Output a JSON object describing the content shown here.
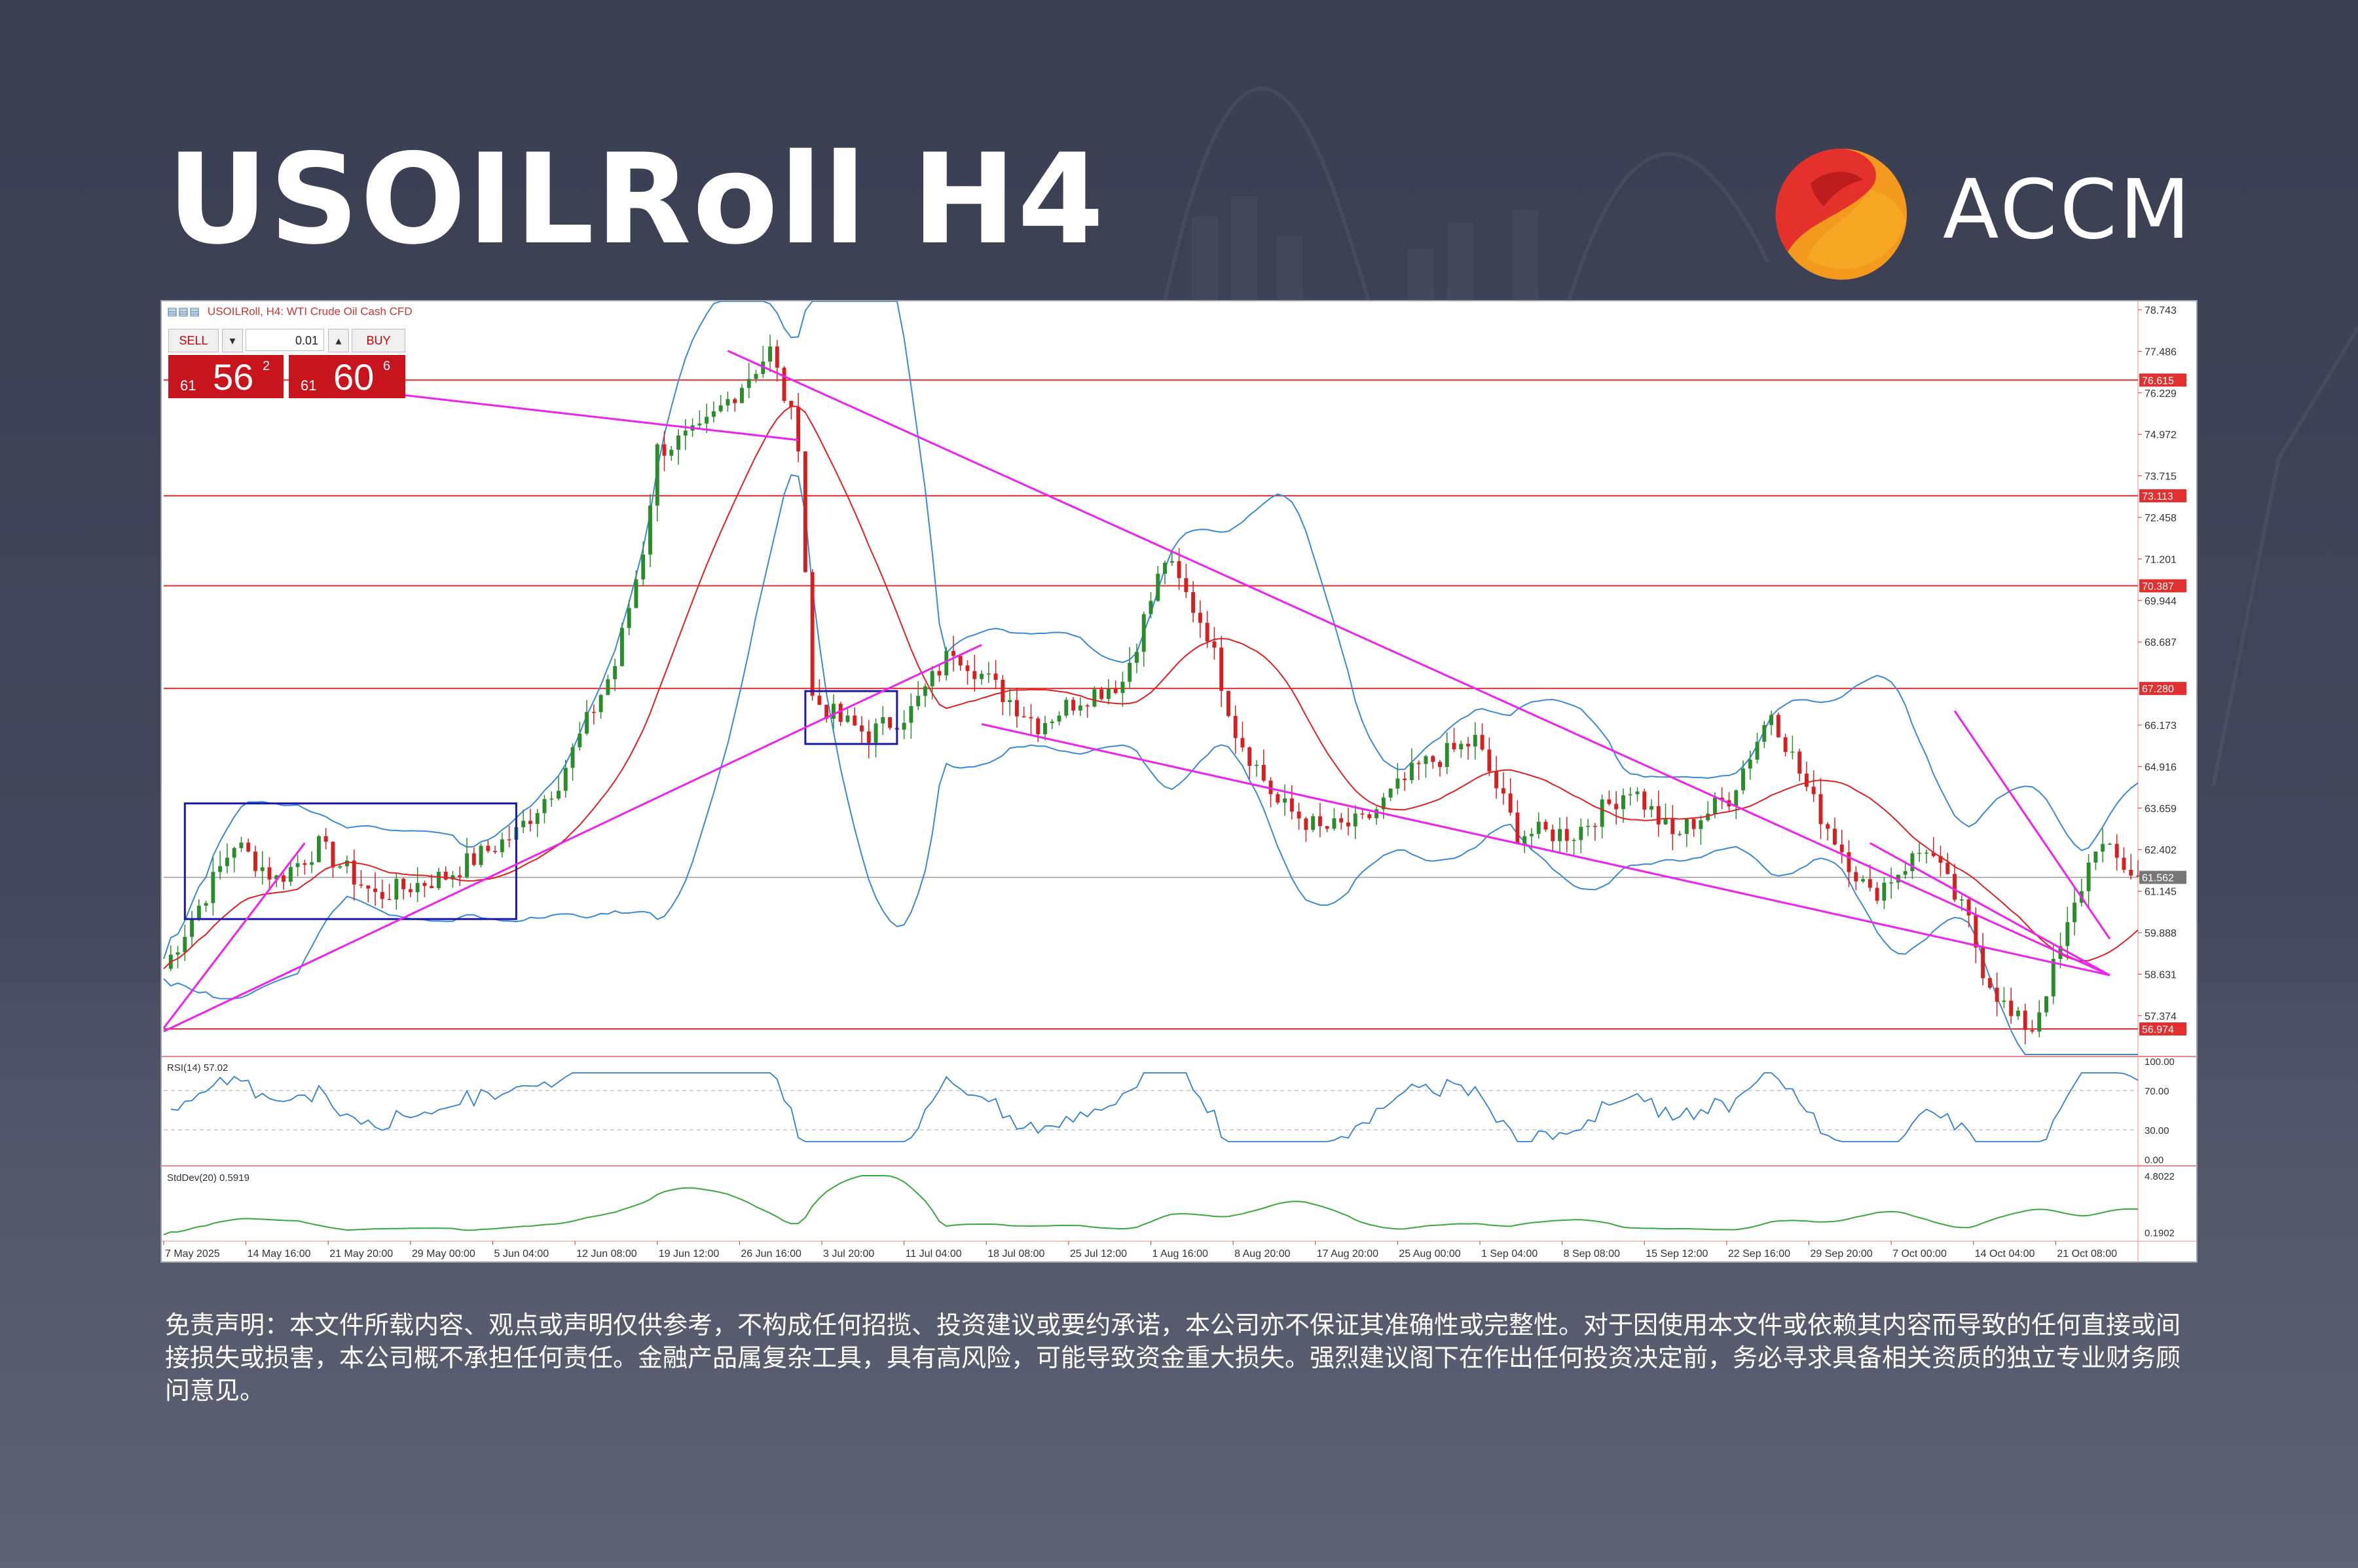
{
  "header": {
    "title": "USOILRoll H4",
    "brand": "ACCM"
  },
  "colors": {
    "background": "#3f4357",
    "title": "#ffffff",
    "brand_red": "#e5312b",
    "brand_orange": "#f39a1e",
    "candle_up": "#2a8c2a",
    "candle_down": "#d42020",
    "level_line": "#e23030",
    "trend_line": "#ee22ee",
    "box": "#1a1aa8",
    "bollinger": "#3a88d8",
    "ma": "#e02020",
    "rsi": "#2f7fd8",
    "stddev": "#3aa83a"
  },
  "window": {
    "symbol_line": "USOILRoll, H4:  WTI Crude Oil Cash CFD",
    "icons": "▤▤▤"
  },
  "trade_panel": {
    "sell_label": "SELL",
    "buy_label": "BUY",
    "lot": "0.01",
    "sell_price_small": "61",
    "sell_price_big": "56",
    "sell_price_sup": "2",
    "buy_price_small": "61",
    "buy_price_big": "60",
    "buy_price_sup": "6"
  },
  "indicators": {
    "rsi_label": "RSI(14) 57.02",
    "std_label": "StdDev(20) 0.5919"
  },
  "chart_data": {
    "type": "candlestick",
    "title": "USOILRoll, H4: WTI Crude Oil Cash CFD",
    "ylim": [
      56.2,
      79.0
    ],
    "price_axis_ticks": [
      "78.743",
      "77.486",
      "76.229",
      "74.972",
      "73.715",
      "72.458",
      "71.201",
      "69.944",
      "68.687",
      "66.173",
      "64.916",
      "63.659",
      "62.402",
      "61.145",
      "59.888",
      "58.631",
      "57.374"
    ],
    "price_axis_values": [
      78.743,
      77.486,
      76.229,
      74.972,
      73.715,
      72.458,
      71.201,
      69.944,
      68.687,
      66.173,
      64.916,
      63.659,
      62.402,
      61.145,
      59.888,
      58.631,
      57.374
    ],
    "horizontal_levels": [
      {
        "value": 76.615,
        "label": "76.615"
      },
      {
        "value": 73.113,
        "label": "73.113"
      },
      {
        "value": 70.387,
        "label": "70.387"
      },
      {
        "value": 67.28,
        "label": "67.280"
      },
      {
        "value": 56.974,
        "label": "56.974"
      }
    ],
    "current_price": {
      "value": 61.562,
      "label": "61.562"
    },
    "x_labels": [
      "7 May 2025",
      "14 May 16:00",
      "21 May 20:00",
      "29 May 00:00",
      "5 Jun 04:00",
      "12 Jun 08:00",
      "19 Jun 12:00",
      "26 Jun 16:00",
      "3 Jul 20:00",
      "11 Jul 04:00",
      "18 Jul 08:00",
      "25 Jul 12:00",
      "1 Aug 16:00",
      "8 Aug 20:00",
      "17 Aug 20:00",
      "25 Aug 00:00",
      "1 Sep 04:00",
      "8 Sep 08:00",
      "15 Sep 12:00",
      "22 Sep 16:00",
      "29 Sep 20:00",
      "7 Oct 00:00",
      "14 Oct 04:00",
      "21 Oct 08:00"
    ],
    "price_path": [
      [
        0,
        58.8
      ],
      [
        10,
        62.6
      ],
      [
        16,
        61.5
      ],
      [
        22,
        62.5
      ],
      [
        30,
        61.0
      ],
      [
        40,
        61.6
      ],
      [
        50,
        62.9
      ],
      [
        56,
        64.5
      ],
      [
        64,
        68.0
      ],
      [
        68,
        71.5
      ],
      [
        70,
        74.5
      ],
      [
        76,
        75.0
      ],
      [
        80,
        76.0
      ],
      [
        86,
        77.5
      ],
      [
        90,
        74.8
      ],
      [
        92,
        67.0
      ],
      [
        96,
        66.3
      ],
      [
        100,
        65.9
      ],
      [
        106,
        66.6
      ],
      [
        112,
        68.5
      ],
      [
        118,
        67.3
      ],
      [
        124,
        66.2
      ],
      [
        130,
        67.0
      ],
      [
        136,
        67.5
      ],
      [
        142,
        71.2
      ],
      [
        148,
        69.0
      ],
      [
        152,
        66.0
      ],
      [
        158,
        63.8
      ],
      [
        164,
        63.0
      ],
      [
        170,
        63.2
      ],
      [
        178,
        64.9
      ],
      [
        186,
        65.7
      ],
      [
        192,
        62.9
      ],
      [
        200,
        62.9
      ],
      [
        208,
        64.3
      ],
      [
        214,
        62.8
      ],
      [
        222,
        64.0
      ],
      [
        228,
        66.6
      ],
      [
        234,
        63.8
      ],
      [
        242,
        61.0
      ],
      [
        250,
        62.5
      ],
      [
        256,
        60.2
      ],
      [
        258,
        58.8
      ],
      [
        262,
        57.3
      ],
      [
        265,
        57.0
      ],
      [
        270,
        60.0
      ],
      [
        274,
        62.6
      ],
      [
        280,
        61.56
      ]
    ],
    "trendlines": [
      {
        "from": [
          0,
          57.0
        ],
        "to": [
          20,
          62.6
        ]
      },
      {
        "from": [
          0,
          56.9
        ],
        "to": [
          92,
          66.2
        ]
      },
      {
        "from": [
          92,
          66.2
        ],
        "to": [
          116,
          68.6
        ]
      },
      {
        "from": [
          20,
          76.5
        ],
        "to": [
          90,
          74.8
        ]
      },
      {
        "from": [
          80,
          77.5
        ],
        "to": [
          276,
          58.6
        ]
      },
      {
        "from": [
          116,
          66.2
        ],
        "to": [
          276,
          58.6
        ]
      },
      {
        "from": [
          254,
          66.6
        ],
        "to": [
          276,
          59.7
        ]
      },
      {
        "from": [
          242,
          62.6
        ],
        "to": [
          276,
          58.6
        ]
      }
    ],
    "boxes": [
      {
        "x_from": 3,
        "x_to": 50,
        "y_from": 60.3,
        "y_to": 63.8
      },
      {
        "x_from": 91,
        "x_to": 104,
        "y_from": 65.6,
        "y_to": 67.2
      }
    ],
    "rsi": {
      "name": "RSI(14)",
      "value": 57.02,
      "levels": [
        70,
        30
      ],
      "ticks": [
        "100.00",
        "70.00",
        "30.00",
        "0.00"
      ]
    },
    "stddev": {
      "name": "StdDev(20)",
      "value": 0.5919,
      "ticks": [
        "4.8022",
        "0.1902"
      ]
    }
  },
  "disclaimer": "免责声明：本文件所载内容、观点或声明仅供参考，不构成任何招揽、投资建议或要约承诺，本公司亦不保证其准确性或完整性。对于因使用本文件或依赖其内容而导致的任何直接或间接损失或损害，本公司概不承担任何责任。金融产品属复杂工具，具有高风险，可能导致资金重大损失。强烈建议阁下在作出任何投资决定前，务必寻求具备相关资质的独立专业财务顾问意见。"
}
